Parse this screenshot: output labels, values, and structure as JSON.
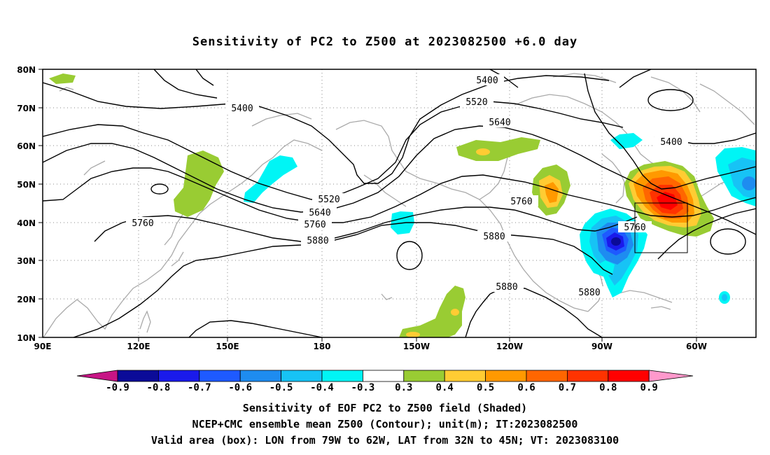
{
  "title": "Sensitivity of PC2 to Z500 at 2023082500 +6.0 day",
  "map": {
    "lat_labels": [
      "80N",
      "70N",
      "60N",
      "50N",
      "40N",
      "30N",
      "20N",
      "10N"
    ],
    "lon_labels": [
      "90E",
      "120E",
      "150E",
      "180",
      "150W",
      "120W",
      "90W",
      "60W"
    ],
    "contour_labels": [
      "5400",
      "5400",
      "5400",
      "5520",
      "5520",
      "5640",
      "5640",
      "5760",
      "5760",
      "5760",
      "5760",
      "5880",
      "5880",
      "5880",
      "5880"
    ],
    "valid_box": {
      "lon_from": "79W",
      "lon_to": "62W",
      "lat_from": "32N",
      "lat_to": "45N"
    }
  },
  "colorbar": {
    "ticks": [
      "-0.9",
      "-0.8",
      "-0.7",
      "-0.6",
      "-0.5",
      "-0.4",
      "-0.3",
      "0.3",
      "0.4",
      "0.5",
      "0.6",
      "0.7",
      "0.8",
      "0.9"
    ],
    "colors": [
      "#0b0b98",
      "#1a1aeb",
      "#1e5aff",
      "#1e8cf0",
      "#17c3f5",
      "#00f5f5",
      "#ffffff",
      "#99cc33",
      "#ffcc33",
      "#ff9900",
      "#ff6600",
      "#ff3300",
      "#ff0000"
    ],
    "low_end_color": "#c71585",
    "high_end_color": "#ff99cc"
  },
  "captions": {
    "line1": "Sensitivity of EOF PC2 to Z500 field (Shaded)",
    "line2": "NCEP+CMC ensemble mean Z500 (Contour); unit(m); IT:2023082500",
    "line3": "Valid area (box): LON from 79W to 62W, LAT from 32N to 45N; VT: 2023083100"
  }
}
